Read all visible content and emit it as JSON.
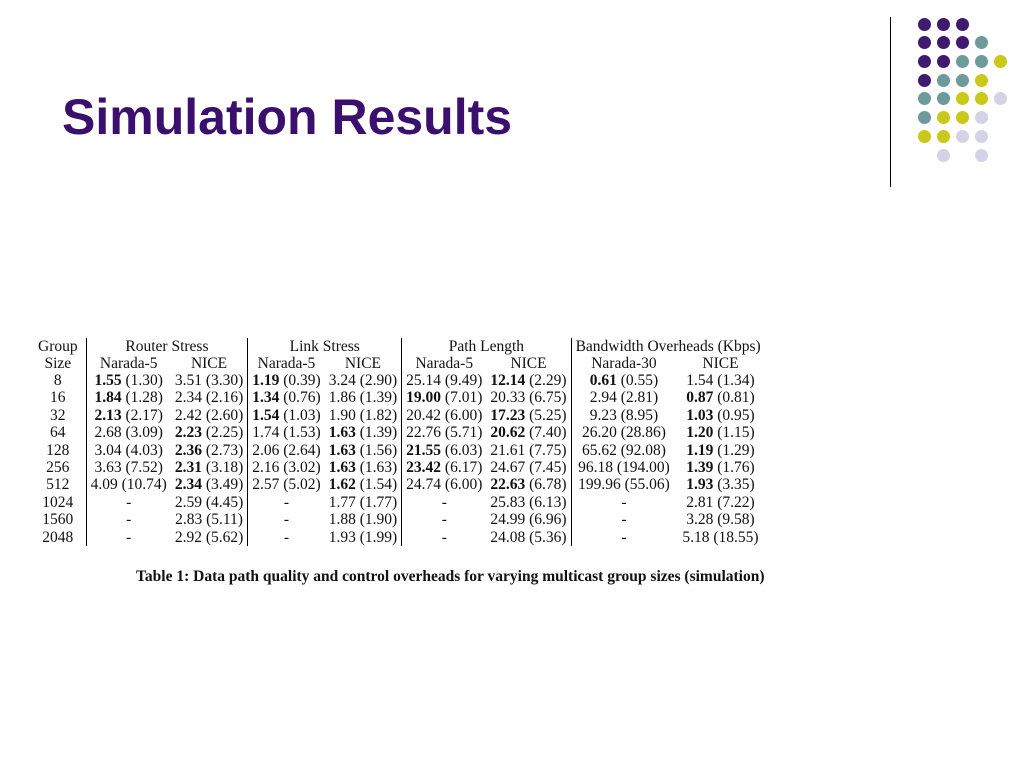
{
  "slide": {
    "title": "Simulation Results"
  },
  "decoration": {
    "dot_palette": {
      "purple": "#3f1a6e",
      "teal": "#6d9a9a",
      "yellow": "#c9c91a",
      "lilac": "#d4d2e6"
    }
  },
  "table": {
    "group_header_line1": "Group",
    "group_header_line2": "Size",
    "metrics": [
      {
        "label": "Router Stress",
        "sub": [
          "Narada-5",
          "NICE"
        ]
      },
      {
        "label": "Link Stress",
        "sub": [
          "Narada-5",
          "NICE"
        ]
      },
      {
        "label": "Path Length",
        "sub": [
          "Narada-5",
          "NICE"
        ]
      },
      {
        "label": "Bandwidth Overheads (Kbps)",
        "sub": [
          "Narada-30",
          "NICE"
        ]
      }
    ],
    "rows": [
      {
        "size": "8",
        "cells": [
          {
            "v": "1.55",
            "p": "(1.30)",
            "b": true
          },
          {
            "v": "3.51",
            "p": "(3.30)",
            "b": false
          },
          {
            "v": "1.19",
            "p": "(0.39)",
            "b": true
          },
          {
            "v": "3.24",
            "p": "(2.90)",
            "b": false
          },
          {
            "v": "25.14",
            "p": "(9.49)",
            "b": false
          },
          {
            "v": "12.14",
            "p": "(2.29)",
            "b": true
          },
          {
            "v": "0.61",
            "p": "(0.55)",
            "b": true
          },
          {
            "v": "1.54",
            "p": "(1.34)",
            "b": false
          }
        ]
      },
      {
        "size": "16",
        "cells": [
          {
            "v": "1.84",
            "p": "(1.28)",
            "b": true
          },
          {
            "v": "2.34",
            "p": "(2.16)",
            "b": false
          },
          {
            "v": "1.34",
            "p": "(0.76)",
            "b": true
          },
          {
            "v": "1.86",
            "p": "(1.39)",
            "b": false
          },
          {
            "v": "19.00",
            "p": "(7.01)",
            "b": true
          },
          {
            "v": "20.33",
            "p": "(6.75)",
            "b": false
          },
          {
            "v": "2.94",
            "p": "(2.81)",
            "b": false
          },
          {
            "v": "0.87",
            "p": "(0.81)",
            "b": true
          }
        ]
      },
      {
        "size": "32",
        "cells": [
          {
            "v": "2.13",
            "p": "(2.17)",
            "b": true
          },
          {
            "v": "2.42",
            "p": "(2.60)",
            "b": false
          },
          {
            "v": "1.54",
            "p": "(1.03)",
            "b": true
          },
          {
            "v": "1.90",
            "p": "(1.82)",
            "b": false
          },
          {
            "v": "20.42",
            "p": "(6.00)",
            "b": false
          },
          {
            "v": "17.23",
            "p": "(5.25)",
            "b": true
          },
          {
            "v": "9.23",
            "p": "(8.95)",
            "b": false
          },
          {
            "v": "1.03",
            "p": "(0.95)",
            "b": true
          }
        ]
      },
      {
        "size": "64",
        "cells": [
          {
            "v": "2.68",
            "p": "(3.09)",
            "b": false
          },
          {
            "v": "2.23",
            "p": "(2.25)",
            "b": true
          },
          {
            "v": "1.74",
            "p": "(1.53)",
            "b": false
          },
          {
            "v": "1.63",
            "p": "(1.39)",
            "b": true
          },
          {
            "v": "22.76",
            "p": "(5.71)",
            "b": false
          },
          {
            "v": "20.62",
            "p": "(7.40)",
            "b": true
          },
          {
            "v": "26.20",
            "p": "(28.86)",
            "b": false
          },
          {
            "v": "1.20",
            "p": "(1.15)",
            "b": true
          }
        ]
      },
      {
        "size": "128",
        "cells": [
          {
            "v": "3.04",
            "p": "(4.03)",
            "b": false
          },
          {
            "v": "2.36",
            "p": "(2.73)",
            "b": true
          },
          {
            "v": "2.06",
            "p": "(2.64)",
            "b": false
          },
          {
            "v": "1.63",
            "p": "(1.56)",
            "b": true
          },
          {
            "v": "21.55",
            "p": "(6.03)",
            "b": true
          },
          {
            "v": "21.61",
            "p": "(7.75)",
            "b": false
          },
          {
            "v": "65.62",
            "p": "(92.08)",
            "b": false
          },
          {
            "v": "1.19",
            "p": "(1.29)",
            "b": true
          }
        ]
      },
      {
        "size": "256",
        "cells": [
          {
            "v": "3.63",
            "p": "(7.52)",
            "b": false
          },
          {
            "v": "2.31",
            "p": "(3.18)",
            "b": true
          },
          {
            "v": "2.16",
            "p": "(3.02)",
            "b": false
          },
          {
            "v": "1.63",
            "p": "(1.63)",
            "b": true
          },
          {
            "v": "23.42",
            "p": "(6.17)",
            "b": true
          },
          {
            "v": "24.67",
            "p": "(7.45)",
            "b": false
          },
          {
            "v": "96.18",
            "p": "(194.00)",
            "b": false
          },
          {
            "v": "1.39",
            "p": "(1.76)",
            "b": true
          }
        ]
      },
      {
        "size": "512",
        "cells": [
          {
            "v": "4.09",
            "p": "(10.74)",
            "b": false
          },
          {
            "v": "2.34",
            "p": "(3.49)",
            "b": true
          },
          {
            "v": "2.57",
            "p": "(5.02)",
            "b": false
          },
          {
            "v": "1.62",
            "p": "(1.54)",
            "b": true
          },
          {
            "v": "24.74",
            "p": "(6.00)",
            "b": false
          },
          {
            "v": "22.63",
            "p": "(6.78)",
            "b": true
          },
          {
            "v": "199.96",
            "p": "(55.06)",
            "b": false
          },
          {
            "v": "1.93",
            "p": "(3.35)",
            "b": true
          }
        ]
      },
      {
        "size": "1024",
        "cells": [
          {
            "v": "-",
            "p": "",
            "b": false
          },
          {
            "v": "2.59",
            "p": "(4.45)",
            "b": false
          },
          {
            "v": "-",
            "p": "",
            "b": false
          },
          {
            "v": "1.77",
            "p": "(1.77)",
            "b": false
          },
          {
            "v": "-",
            "p": "",
            "b": false
          },
          {
            "v": "25.83",
            "p": "(6.13)",
            "b": false
          },
          {
            "v": "-",
            "p": "",
            "b": false
          },
          {
            "v": "2.81",
            "p": "(7.22)",
            "b": false
          }
        ]
      },
      {
        "size": "1560",
        "cells": [
          {
            "v": "-",
            "p": "",
            "b": false
          },
          {
            "v": "2.83",
            "p": "(5.11)",
            "b": false
          },
          {
            "v": "-",
            "p": "",
            "b": false
          },
          {
            "v": "1.88",
            "p": "(1.90)",
            "b": false
          },
          {
            "v": "-",
            "p": "",
            "b": false
          },
          {
            "v": "24.99",
            "p": "(6.96)",
            "b": false
          },
          {
            "v": "-",
            "p": "",
            "b": false
          },
          {
            "v": "3.28",
            "p": "(9.58)",
            "b": false
          }
        ]
      },
      {
        "size": "2048",
        "cells": [
          {
            "v": "-",
            "p": "",
            "b": false
          },
          {
            "v": "2.92",
            "p": "(5.62)",
            "b": false
          },
          {
            "v": "-",
            "p": "",
            "b": false
          },
          {
            "v": "1.93",
            "p": "(1.99)",
            "b": false
          },
          {
            "v": "-",
            "p": "",
            "b": false
          },
          {
            "v": "24.08",
            "p": "(5.36)",
            "b": false
          },
          {
            "v": "-",
            "p": "",
            "b": false
          },
          {
            "v": "5.18",
            "p": "(18.55)",
            "b": false
          }
        ]
      }
    ],
    "caption": "Table 1: Data path quality and control overheads for varying multicast group sizes (simulation)"
  }
}
